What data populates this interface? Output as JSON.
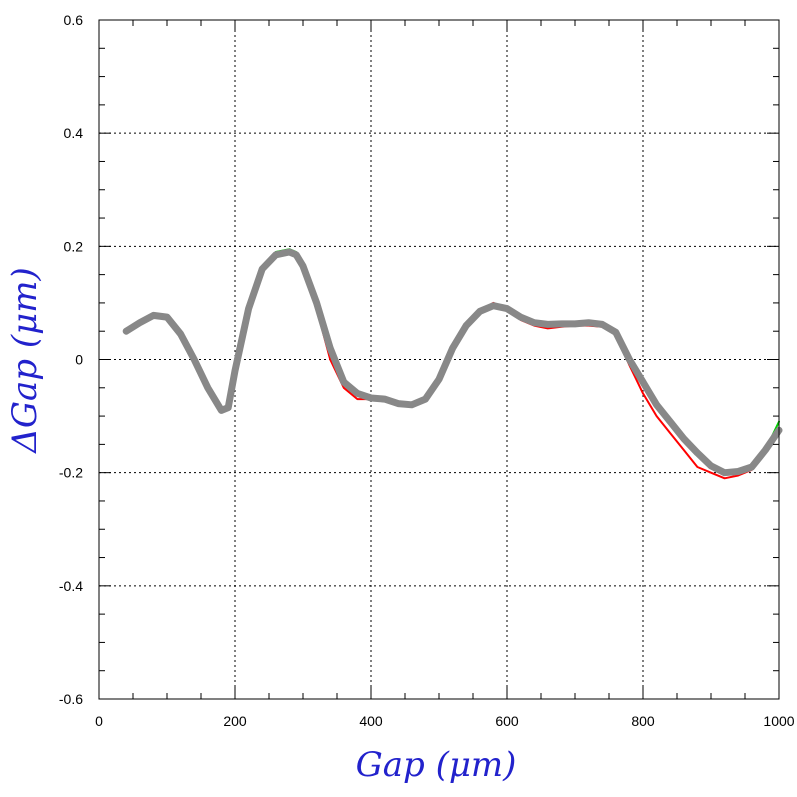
{
  "chart_data": {
    "type": "line",
    "title": "",
    "xlabel": "Gap  (μm)",
    "ylabel": "ΔGap  (μm)",
    "xlim": [
      0,
      1000
    ],
    "ylim": [
      -0.6,
      0.6
    ],
    "x_ticks": [
      "0",
      "200",
      "400",
      "600",
      "800",
      "1000"
    ],
    "y_ticks": [
      "-0.6",
      "-0.4",
      "-0.2",
      "0",
      "0.2",
      "0.4",
      "0.6"
    ],
    "grid": true,
    "legend": "none",
    "x": [
      40,
      60,
      80,
      100,
      120,
      140,
      160,
      180,
      190,
      200,
      220,
      240,
      260,
      280,
      290,
      300,
      320,
      340,
      360,
      380,
      400,
      420,
      440,
      460,
      480,
      500,
      520,
      540,
      560,
      580,
      600,
      620,
      640,
      660,
      680,
      700,
      720,
      740,
      760,
      780,
      800,
      820,
      840,
      860,
      880,
      900,
      920,
      940,
      960,
      980,
      1000
    ],
    "series": [
      {
        "color": "#0000ff",
        "values": [
          0.05,
          0.065,
          0.078,
          0.075,
          0.045,
          0.0,
          -0.05,
          -0.09,
          -0.085,
          -0.02,
          0.09,
          0.16,
          0.185,
          0.19,
          0.185,
          0.165,
          0.1,
          0.02,
          -0.04,
          -0.06,
          -0.068,
          -0.07,
          -0.078,
          -0.08,
          -0.07,
          -0.035,
          0.02,
          0.06,
          0.085,
          0.095,
          0.09,
          0.075,
          0.065,
          0.062,
          0.063,
          0.063,
          0.065,
          0.062,
          0.048,
          0.0,
          -0.04,
          -0.08,
          -0.11,
          -0.14,
          -0.165,
          -0.188,
          -0.2,
          -0.198,
          -0.19,
          -0.16,
          -0.125
        ]
      },
      {
        "color": "#ff0000",
        "values": [
          0.05,
          0.065,
          0.078,
          0.075,
          0.045,
          0.0,
          -0.05,
          -0.09,
          -0.085,
          -0.02,
          0.09,
          0.16,
          0.185,
          0.19,
          0.185,
          0.16,
          0.09,
          0.0,
          -0.05,
          -0.07,
          -0.07,
          -0.072,
          -0.08,
          -0.08,
          -0.07,
          -0.035,
          0.02,
          0.06,
          0.085,
          0.1,
          0.09,
          0.07,
          0.06,
          0.055,
          0.058,
          0.06,
          0.06,
          0.058,
          0.045,
          -0.01,
          -0.06,
          -0.1,
          -0.13,
          -0.16,
          -0.19,
          -0.2,
          -0.21,
          -0.205,
          -0.195,
          -0.16,
          -0.125
        ]
      },
      {
        "color": "#00cc00",
        "values": [
          0.05,
          0.065,
          0.078,
          0.075,
          0.045,
          0.0,
          -0.05,
          -0.09,
          -0.085,
          -0.02,
          0.09,
          0.16,
          0.19,
          0.195,
          0.19,
          0.165,
          0.1,
          0.02,
          -0.04,
          -0.06,
          -0.068,
          -0.07,
          -0.078,
          -0.08,
          -0.07,
          -0.035,
          0.02,
          0.06,
          0.085,
          0.095,
          0.09,
          0.075,
          0.065,
          0.062,
          0.063,
          0.063,
          0.065,
          0.062,
          0.048,
          0.0,
          -0.04,
          -0.08,
          -0.11,
          -0.14,
          -0.165,
          -0.188,
          -0.2,
          -0.198,
          -0.19,
          -0.16,
          -0.11
        ]
      },
      {
        "color": "#888888",
        "values": [
          0.05,
          0.065,
          0.078,
          0.075,
          0.045,
          0.0,
          -0.05,
          -0.09,
          -0.085,
          -0.02,
          0.09,
          0.16,
          0.185,
          0.19,
          0.185,
          0.165,
          0.1,
          0.02,
          -0.04,
          -0.06,
          -0.068,
          -0.07,
          -0.078,
          -0.08,
          -0.07,
          -0.035,
          0.02,
          0.06,
          0.085,
          0.095,
          0.09,
          0.075,
          0.065,
          0.062,
          0.063,
          0.063,
          0.065,
          0.062,
          0.048,
          0.0,
          -0.04,
          -0.08,
          -0.11,
          -0.14,
          -0.165,
          -0.188,
          -0.2,
          -0.198,
          -0.19,
          -0.16,
          -0.125
        ]
      }
    ]
  }
}
